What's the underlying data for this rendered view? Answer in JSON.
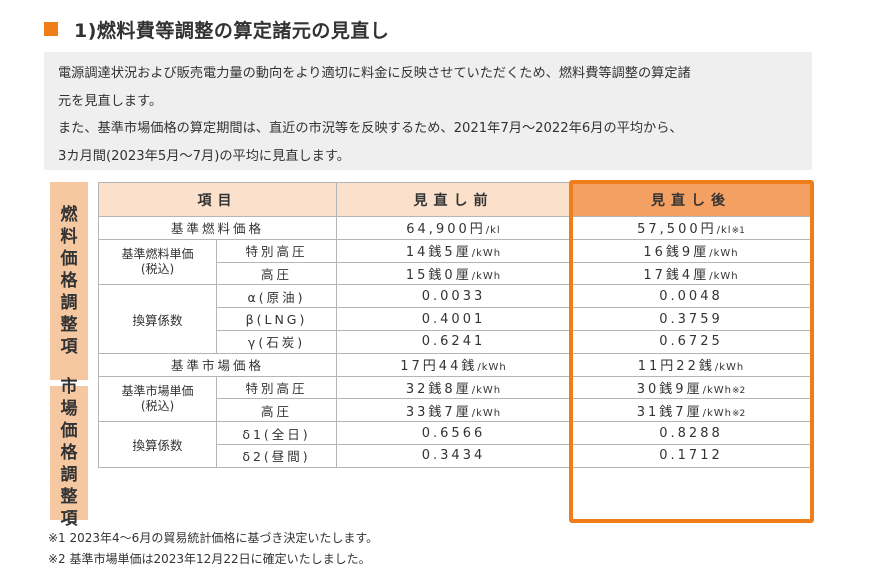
{
  "heading": {
    "title": "1)燃料費等調整の算定諸元の見直し",
    "accent_color": "#ef7d1a"
  },
  "note": {
    "lines": [
      "電源調達状況および販売電力量の動向をより適切に料金に反映させていただくため、燃料費等調整の算定諸",
      "元を見直します。",
      "また、基準市場価格の算定期間は、直近の市況等を反映するため、2021年7月～2022年6月の平均から、",
      "3カ月間(2023年5月～7月)の平均に見直します。"
    ]
  },
  "side_labels": {
    "fuel": "燃料価格調整項",
    "market": "市場価格調整項"
  },
  "table": {
    "headers": {
      "item": "項目",
      "before": "見直し前",
      "after": "見直し後"
    },
    "fuel": {
      "base_price": {
        "label": "基準燃料価格",
        "before": "64,900円",
        "before_unit": "/kl",
        "after": "57,500円",
        "after_unit": "/kl",
        "after_mark": "※1"
      },
      "unit_price_label_1": "基準燃料単価",
      "unit_price_label_2": "(税込)",
      "special_hv": {
        "label": "特別高圧",
        "before": "14銭5厘",
        "before_unit": "/kWh",
        "after": "16銭9厘",
        "after_unit": "/kWh"
      },
      "hv": {
        "label": "高圧",
        "before": "15銭0厘",
        "before_unit": "/kWh",
        "after": "17銭4厘",
        "after_unit": "/kWh"
      },
      "coef_label": "換算係数",
      "alpha": {
        "label": "α(原油)",
        "before": "0.0033",
        "after": "0.0048"
      },
      "beta": {
        "label": "β(LNG)",
        "before": "0.4001",
        "after": "0.3759"
      },
      "gamma": {
        "label": "γ(石炭)",
        "before": "0.6241",
        "after": "0.6725"
      }
    },
    "market": {
      "base_price": {
        "label": "基準市場価格",
        "before": "17円44銭",
        "before_unit": "/kWh",
        "after": "11円22銭",
        "after_unit": "/kWh"
      },
      "unit_price_label_1": "基準市場単価",
      "unit_price_label_2": "(税込)",
      "special_hv": {
        "label": "特別高圧",
        "before": "32銭8厘",
        "before_unit": "/kWh",
        "after": "30銭9厘",
        "after_unit": "/kWh",
        "after_mark": "※2"
      },
      "hv": {
        "label": "高圧",
        "before": "33銭7厘",
        "before_unit": "/kWh",
        "after": "31銭7厘",
        "after_unit": "/kWh",
        "after_mark": "※2"
      },
      "coef_label": "換算係数",
      "delta1": {
        "label": "δ1(全日)",
        "before": "0.6566",
        "after": "0.8288"
      },
      "delta2": {
        "label": "δ2(昼間)",
        "before": "0.3434",
        "after": "0.1712"
      }
    }
  },
  "footnotes": {
    "fn1": "※1 2023年4～6月の貿易統計価格に基づき決定いたします。",
    "fn2": "※2 基準市場単価は2023年12月22日に確定いたしました。"
  },
  "colors": {
    "header_bg": "#fbe1cc",
    "after_header_bg": "#f4a062",
    "side_bg": "#f6c8a2",
    "highlight_border": "#ef7d1a"
  }
}
